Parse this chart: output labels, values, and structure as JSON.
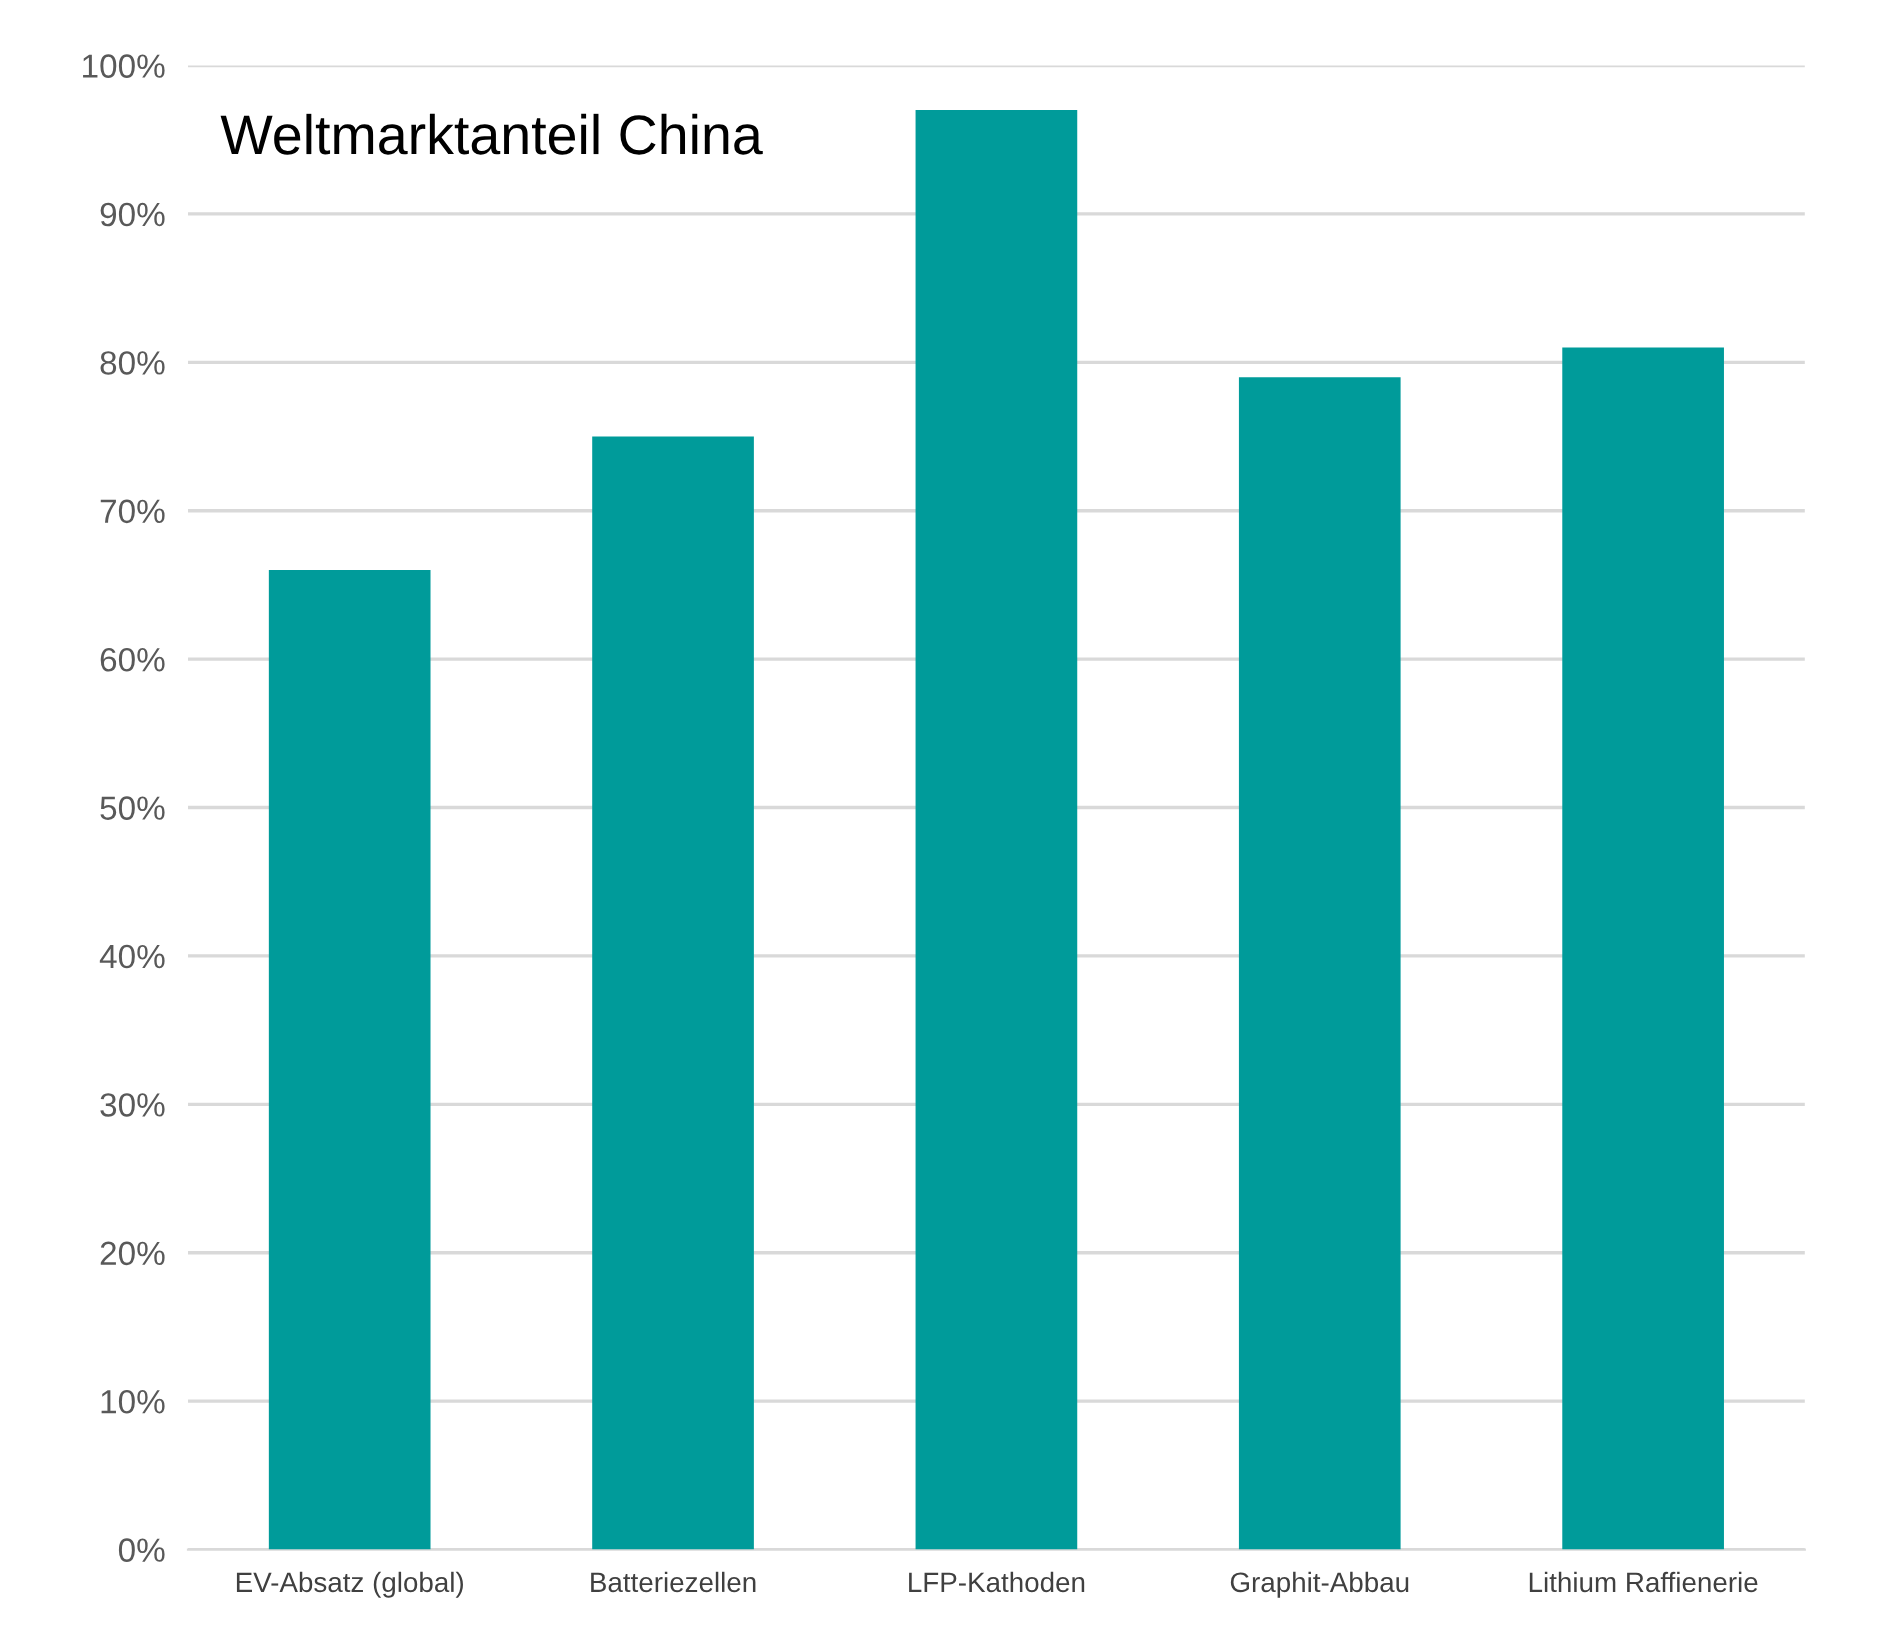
{
  "chart_data": {
    "type": "bar",
    "title": "Weltmarktanteil China",
    "categories": [
      "EV-Absatz (global)",
      "Batteriezellen",
      "LFP-Kathoden",
      "Graphit-Abbau",
      "Lithium Raffienerie"
    ],
    "values": [
      66,
      75,
      97,
      79,
      81
    ],
    "color": "#009b9a",
    "ylim": [
      0,
      100
    ],
    "yticks": [
      {
        "value": 0,
        "label": "0%"
      },
      {
        "value": 10,
        "label": "10%"
      },
      {
        "value": 20,
        "label": "20%"
      },
      {
        "value": 30,
        "label": "30%"
      },
      {
        "value": 40,
        "label": "40%"
      },
      {
        "value": 50,
        "label": "50%"
      },
      {
        "value": 60,
        "label": "60%"
      },
      {
        "value": 70,
        "label": "70%"
      },
      {
        "value": 80,
        "label": "80%"
      },
      {
        "value": 90,
        "label": "90%"
      },
      {
        "value": 100,
        "label": "100%"
      }
    ],
    "grid": "y",
    "legend": false
  }
}
